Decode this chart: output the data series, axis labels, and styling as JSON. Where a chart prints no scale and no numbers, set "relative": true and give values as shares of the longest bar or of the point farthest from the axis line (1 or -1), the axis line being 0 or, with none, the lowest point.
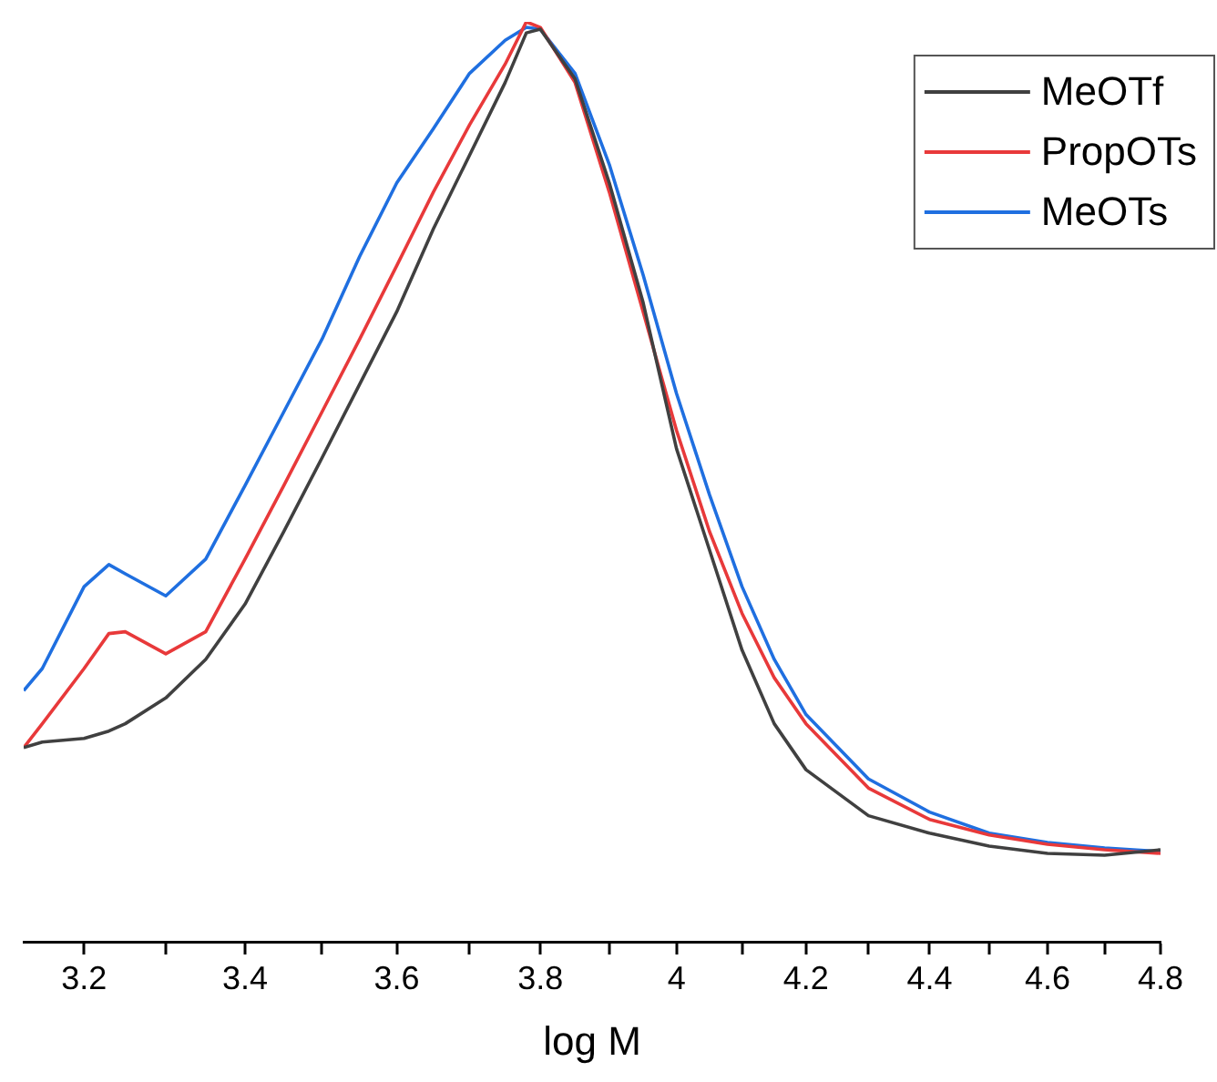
{
  "chart_data": {
    "type": "line",
    "xlabel": "log M",
    "relative": true,
    "log": "x",
    "grid": false,
    "legend": "top right",
    "marker": "none",
    "line_style": "solid",
    "xlim": [
      3.128,
      4.8
    ],
    "xticks": [
      3.2,
      {
        "value": 3.3,
        "label": null
      },
      3.4,
      {
        "value": 3.5,
        "label": null
      },
      3.6,
      {
        "value": 3.7,
        "label": null
      },
      3.8,
      {
        "value": 3.9,
        "label": null
      },
      4,
      {
        "value": 4.1,
        "label": null
      },
      4.2,
      {
        "value": 4.3,
        "label": null
      },
      4.4,
      {
        "value": 4.5,
        "label": null
      },
      4.6,
      {
        "value": 4.7,
        "label": null
      },
      4.8
    ],
    "x": [
      3.128,
      3.15,
      3.2,
      3.23,
      3.25,
      3.3,
      3.35,
      3.4,
      3.45,
      3.5,
      3.55,
      3.6,
      3.65,
      3.7,
      3.75,
      3.78,
      3.8,
      3.85,
      3.9,
      3.95,
      4.0,
      4.05,
      4.1,
      4.15,
      4.2,
      4.3,
      4.4,
      4.5,
      4.6,
      4.7,
      4.8
    ],
    "series": [
      {
        "name": "MeOTf",
        "color": "#404040",
        "values": [
          0.211,
          0.217,
          0.221,
          0.229,
          0.237,
          0.265,
          0.307,
          0.367,
          0.446,
          0.526,
          0.606,
          0.685,
          0.775,
          0.855,
          0.934,
          0.988,
          0.992,
          0.938,
          0.825,
          0.695,
          0.536,
          0.426,
          0.317,
          0.237,
          0.187,
          0.137,
          0.118,
          0.104,
          0.096,
          0.094,
          0.1
        ]
      },
      {
        "name": "PropOTs",
        "color": "#e8393a",
        "values": [
          0.211,
          0.237,
          0.297,
          0.335,
          0.337,
          0.313,
          0.337,
          0.416,
          0.496,
          0.576,
          0.655,
          0.735,
          0.815,
          0.888,
          0.954,
          1.0,
          0.994,
          0.934,
          0.815,
          0.685,
          0.556,
          0.446,
          0.357,
          0.287,
          0.237,
          0.167,
          0.133,
          0.116,
          0.106,
          0.1,
          0.096
        ]
      },
      {
        "name": "MeOTs",
        "color": "#1f6fe0",
        "values": [
          0.273,
          0.297,
          0.386,
          0.41,
          0.4,
          0.376,
          0.416,
          0.496,
          0.576,
          0.655,
          0.745,
          0.825,
          0.884,
          0.944,
          0.98,
          0.994,
          0.992,
          0.944,
          0.845,
          0.725,
          0.596,
          0.486,
          0.386,
          0.307,
          0.247,
          0.177,
          0.141,
          0.118,
          0.108,
          0.102,
          0.098
        ]
      }
    ]
  }
}
